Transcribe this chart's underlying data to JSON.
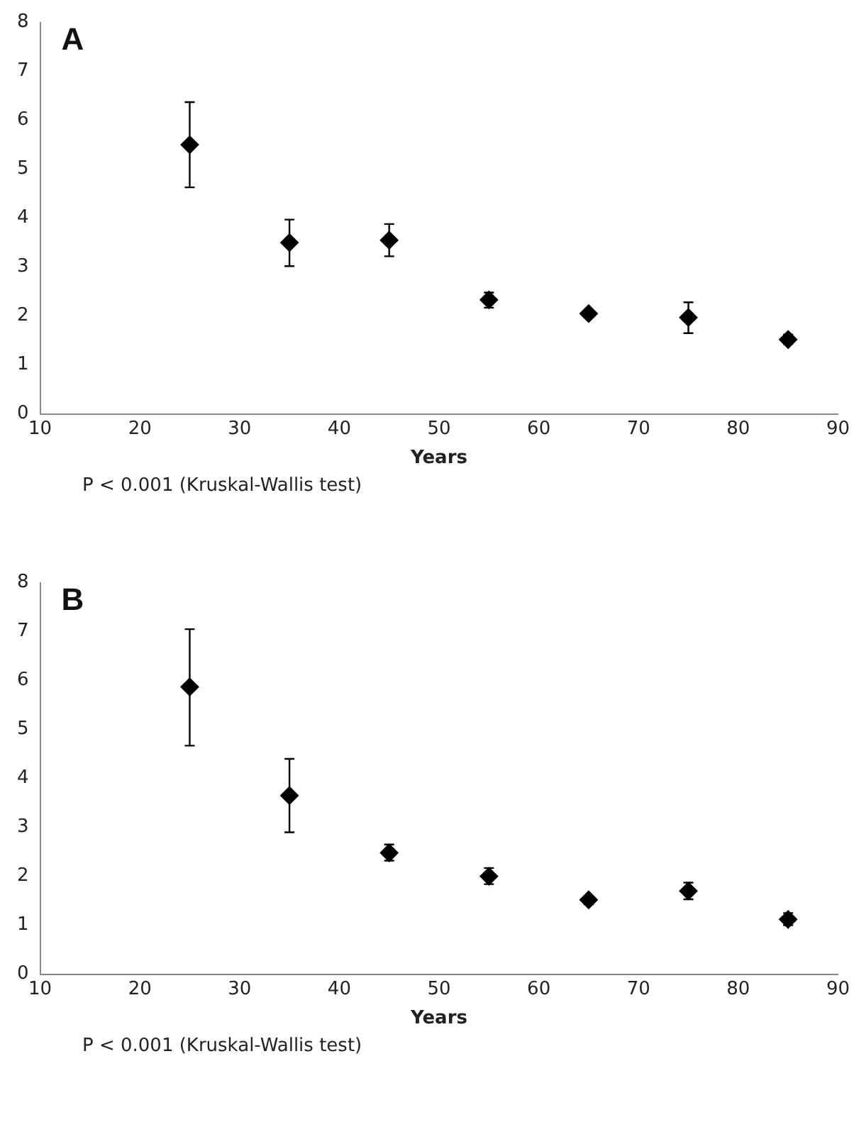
{
  "chart_data": [
    {
      "type": "scatter",
      "title": "A",
      "xlabel": "Years",
      "x": [
        25,
        35,
        45,
        55,
        65,
        75,
        85
      ],
      "series": [
        {
          "color": "#000000",
          "values": [
            5.5,
            3.5,
            3.55,
            2.33,
            2.05,
            1.97,
            1.52
          ],
          "errors": [
            [
              4.63,
              6.37
            ],
            [
              3.02,
              3.97
            ],
            [
              3.22,
              3.88
            ],
            [
              2.17,
              2.48
            ],
            [
              1.97,
              2.12
            ],
            [
              1.65,
              2.28
            ],
            [
              1.43,
              1.62
            ]
          ]
        }
      ],
      "xlim": [
        10,
        90
      ],
      "xticks": [
        10,
        20,
        30,
        40,
        50,
        60,
        70,
        80,
        90
      ],
      "ylim": [
        0,
        8
      ],
      "yticks": [
        0,
        1,
        2,
        3,
        4,
        5,
        6,
        7,
        8
      ],
      "grid": false,
      "legend": false,
      "marker": "diamond",
      "annotations": [
        "P < 0.001 (Kruskal-Wallis test)"
      ]
    },
    {
      "type": "scatter",
      "title": "B",
      "xlabel": "Years",
      "x": [
        25,
        35,
        45,
        55,
        65,
        75,
        85
      ],
      "series": [
        {
          "color": "#000000",
          "values": [
            5.87,
            3.65,
            2.48,
            2.0,
            1.52,
            1.7,
            1.12
          ],
          "errors": [
            [
              4.67,
              7.05
            ],
            [
              2.9,
              4.4
            ],
            [
              2.32,
              2.65
            ],
            [
              1.84,
              2.17
            ],
            [
              1.43,
              1.6
            ],
            [
              1.53,
              1.87
            ],
            [
              1.0,
              1.25
            ]
          ]
        }
      ],
      "xlim": [
        10,
        90
      ],
      "xticks": [
        10,
        20,
        30,
        40,
        50,
        60,
        70,
        80,
        90
      ],
      "ylim": [
        0,
        8
      ],
      "yticks": [
        0,
        1,
        2,
        3,
        4,
        5,
        6,
        7,
        8
      ],
      "grid": false,
      "legend": false,
      "marker": "diamond",
      "annotations": [
        "P < 0.001 (Kruskal-Wallis test)"
      ]
    }
  ]
}
